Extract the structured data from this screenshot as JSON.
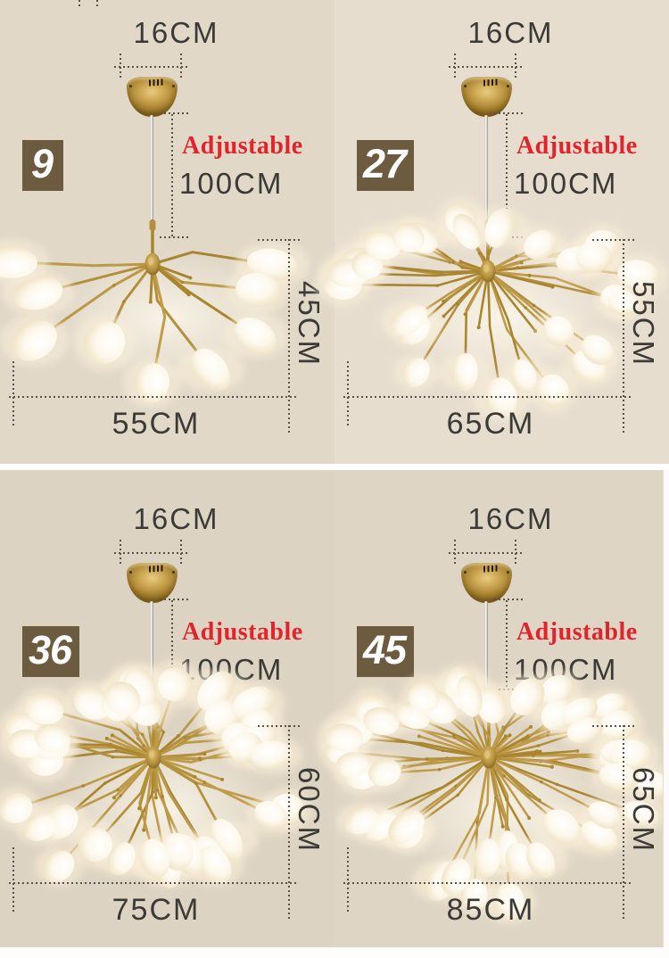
{
  "colors": {
    "accent_red": "#e3232b",
    "badge_brown": "#6d5b40",
    "gold": "#b3903c",
    "background_beige": "#ded4c3",
    "dim_text": "#3b3a36",
    "divider_white": "#ffffff"
  },
  "variants": [
    {
      "badge": "9",
      "lights": 9,
      "canopy_width": "16CM",
      "adjustable_label": "Adjustable",
      "cord_length": "100CM",
      "fixture_height": "45CM",
      "fixture_width": "55CM"
    },
    {
      "badge": "27",
      "lights": 27,
      "canopy_width": "16CM",
      "adjustable_label": "Adjustable",
      "cord_length": "100CM",
      "fixture_height": "55CM",
      "fixture_width": "65CM"
    },
    {
      "badge": "36",
      "lights": 36,
      "canopy_width": "16CM",
      "adjustable_label": "Adjustable",
      "cord_length": "100CM",
      "fixture_height": "60CM",
      "fixture_width": "75CM"
    },
    {
      "badge": "45",
      "lights": 45,
      "canopy_width": "16CM",
      "adjustable_label": "Adjustable",
      "cord_length": "100CM",
      "fixture_height": "65CM",
      "fixture_width": "85CM"
    }
  ]
}
